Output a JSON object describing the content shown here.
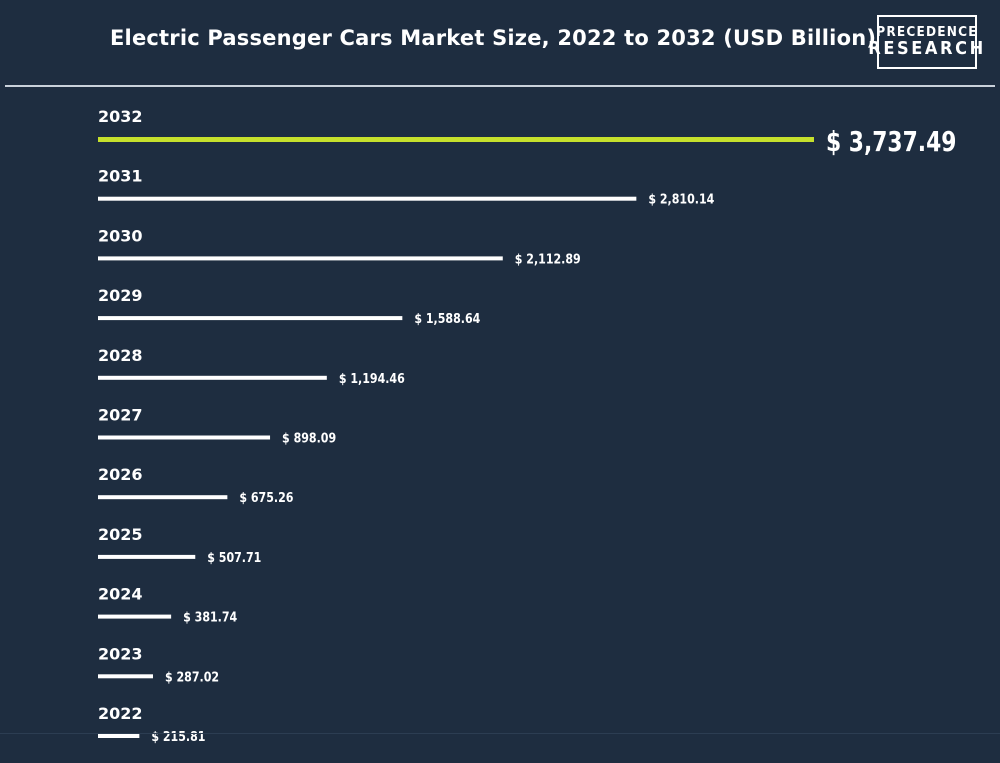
{
  "header": {
    "title": "Electric Passenger Cars Market Size, 2022 to 2032 (USD Billion)",
    "logo_line1": "PRECEDENCE",
    "logo_line2": "RESEARCH"
  },
  "colors": {
    "background": "#1e2d40",
    "bar": "#ffffff",
    "highlight_bar": "#c6e02c",
    "text": "#ffffff"
  },
  "chart_data": {
    "type": "bar",
    "orientation": "horizontal",
    "title": "Electric Passenger Cars Market Size, 2022 to 2032 (USD Billion)",
    "categories": [
      "2032",
      "2031",
      "2030",
      "2029",
      "2028",
      "2027",
      "2026",
      "2025",
      "2024",
      "2023",
      "2022"
    ],
    "values": [
      3737.49,
      2810.14,
      2112.89,
      1588.64,
      1194.46,
      898.09,
      675.26,
      507.71,
      381.74,
      287.02,
      215.81
    ],
    "labels": [
      "$ 3,737.49",
      "$ 2,810.14",
      "$ 2,112.89",
      "$ 1,588.64",
      "$ 1,194.46",
      "$ 898.09",
      "$ 675.26",
      "$ 507.71",
      "$ 381.74",
      "$ 287.02",
      "$ 215.81"
    ],
    "highlight": "2032",
    "grid": false,
    "legend": "none"
  }
}
